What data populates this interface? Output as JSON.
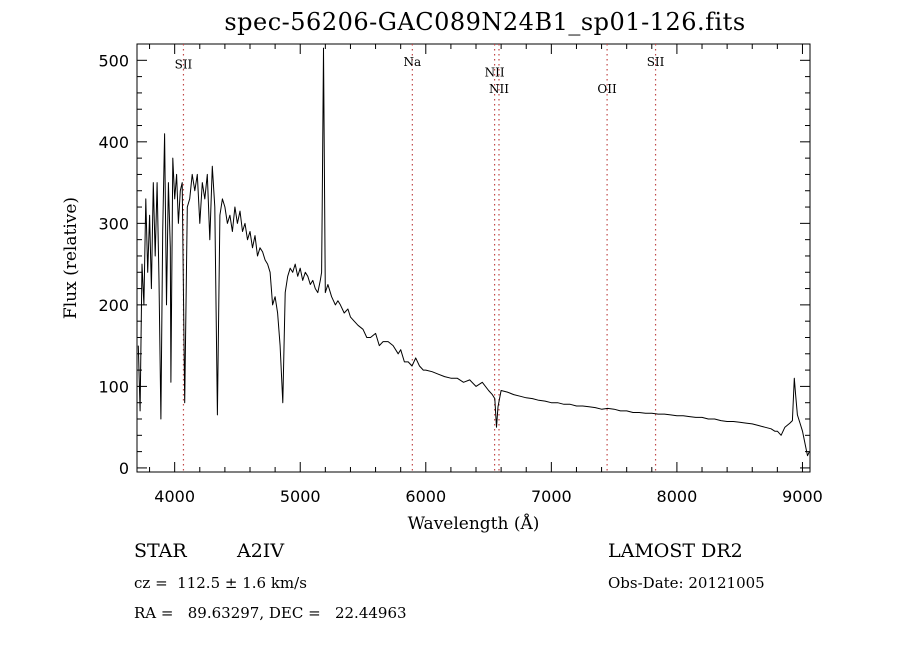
{
  "chart_data": {
    "type": "line",
    "title": "spec-56206-GAC089N24B1_sp01-126.fits",
    "xlabel": "Wavelength (Å)",
    "ylabel": "Flux (relative)",
    "xlim": [
      3700,
      9060
    ],
    "ylim": [
      -5,
      520
    ],
    "xticks": [
      4000,
      5000,
      6000,
      7000,
      8000,
      9000
    ],
    "yticks": [
      0,
      100,
      200,
      300,
      400,
      500
    ],
    "grid": false,
    "line_color": "#000000",
    "marker_color": "#c04848",
    "lines": [
      {
        "label": "SII",
        "x": 4070,
        "label_y": 490
      },
      {
        "label": "Na",
        "x": 5893,
        "label_y": 493
      },
      {
        "label": "NII",
        "x": 6548,
        "label_y": 480
      },
      {
        "label": "NII",
        "x": 6583,
        "label_y": 460
      },
      {
        "label": "OII",
        "x": 7444,
        "label_y": 460
      },
      {
        "label": "SII",
        "x": 7830,
        "label_y": 493
      }
    ],
    "series": [
      {
        "x": [
          3710,
          3725,
          3740,
          3755,
          3770,
          3785,
          3800,
          3815,
          3830,
          3845,
          3860,
          3875,
          3890,
          3905,
          3920,
          3935,
          3950,
          3965,
          3970,
          3985,
          4000,
          4015,
          4030,
          4045,
          4060,
          4080,
          4101,
          4120,
          4140,
          4160,
          4180,
          4200,
          4220,
          4240,
          4260,
          4280,
          4300,
          4320,
          4340,
          4360,
          4380,
          4400,
          4420,
          4440,
          4460,
          4480,
          4500,
          4520,
          4540,
          4560,
          4580,
          4600,
          4620,
          4640,
          4660,
          4680,
          4700,
          4720,
          4740,
          4760,
          4780,
          4800,
          4820,
          4840,
          4861,
          4880,
          4900,
          4920,
          4940,
          4960,
          4980,
          5000,
          5020,
          5040,
          5060,
          5080,
          5100,
          5120,
          5140,
          5160,
          5170,
          5175,
          5185,
          5200,
          5220,
          5250,
          5280,
          5300,
          5320,
          5350,
          5380,
          5400,
          5430,
          5460,
          5500,
          5530,
          5560,
          5600,
          5630,
          5660,
          5700,
          5740,
          5780,
          5800,
          5830,
          5860,
          5890,
          5920,
          5950,
          5980,
          6000,
          6050,
          6100,
          6150,
          6200,
          6250,
          6300,
          6350,
          6400,
          6450,
          6500,
          6530,
          6550,
          6563,
          6575,
          6600,
          6650,
          6700,
          6750,
          6800,
          6850,
          6900,
          6950,
          7000,
          7050,
          7100,
          7150,
          7200,
          7250,
          7300,
          7350,
          7400,
          7450,
          7500,
          7550,
          7600,
          7650,
          7700,
          7750,
          7800,
          7850,
          7900,
          7950,
          8000,
          8050,
          8100,
          8150,
          8200,
          8250,
          8300,
          8350,
          8400,
          8450,
          8500,
          8550,
          8600,
          8650,
          8700,
          8750,
          8780,
          8800,
          8830,
          8860,
          8900,
          8920,
          8935,
          8945,
          8960,
          8980,
          9000,
          9020,
          9040,
          9055
        ],
        "y": [
          150,
          70,
          250,
          200,
          330,
          240,
          310,
          220,
          350,
          260,
          350,
          230,
          60,
          290,
          410,
          200,
          350,
          270,
          105,
          380,
          330,
          360,
          300,
          340,
          350,
          80,
          320,
          330,
          360,
          340,
          360,
          300,
          350,
          330,
          360,
          280,
          370,
          320,
          65,
          310,
          330,
          320,
          300,
          310,
          290,
          320,
          300,
          315,
          290,
          300,
          280,
          290,
          270,
          285,
          260,
          270,
          265,
          255,
          250,
          240,
          200,
          210,
          190,
          150,
          80,
          215,
          235,
          245,
          240,
          250,
          235,
          245,
          230,
          240,
          235,
          225,
          230,
          220,
          215,
          230,
          240,
          320,
          515,
          215,
          225,
          210,
          200,
          205,
          200,
          190,
          195,
          185,
          180,
          175,
          170,
          160,
          160,
          165,
          150,
          155,
          155,
          150,
          140,
          145,
          130,
          130,
          125,
          135,
          125,
          120,
          120,
          118,
          115,
          112,
          110,
          110,
          105,
          108,
          100,
          105,
          95,
          90,
          85,
          50,
          75,
          95,
          93,
          90,
          88,
          86,
          85,
          83,
          82,
          80,
          80,
          78,
          78,
          76,
          76,
          75,
          74,
          72,
          73,
          72,
          70,
          70,
          68,
          68,
          67,
          67,
          66,
          66,
          65,
          64,
          64,
          63,
          62,
          62,
          60,
          60,
          58,
          57,
          57,
          56,
          55,
          54,
          52,
          50,
          48,
          45,
          45,
          40,
          50,
          55,
          58,
          110,
          90,
          65,
          55,
          45,
          30,
          15,
          20
        ]
      }
    ]
  },
  "footer": {
    "object_type": "STAR",
    "spectral_class": "A2IV",
    "redshift": "cz =  112.5 ± 1.6 km/s",
    "coords": "RA =   89.63297, DEC =   22.44963",
    "survey": "LAMOST DR2",
    "obs_date": "Obs-Date: 20121005"
  }
}
